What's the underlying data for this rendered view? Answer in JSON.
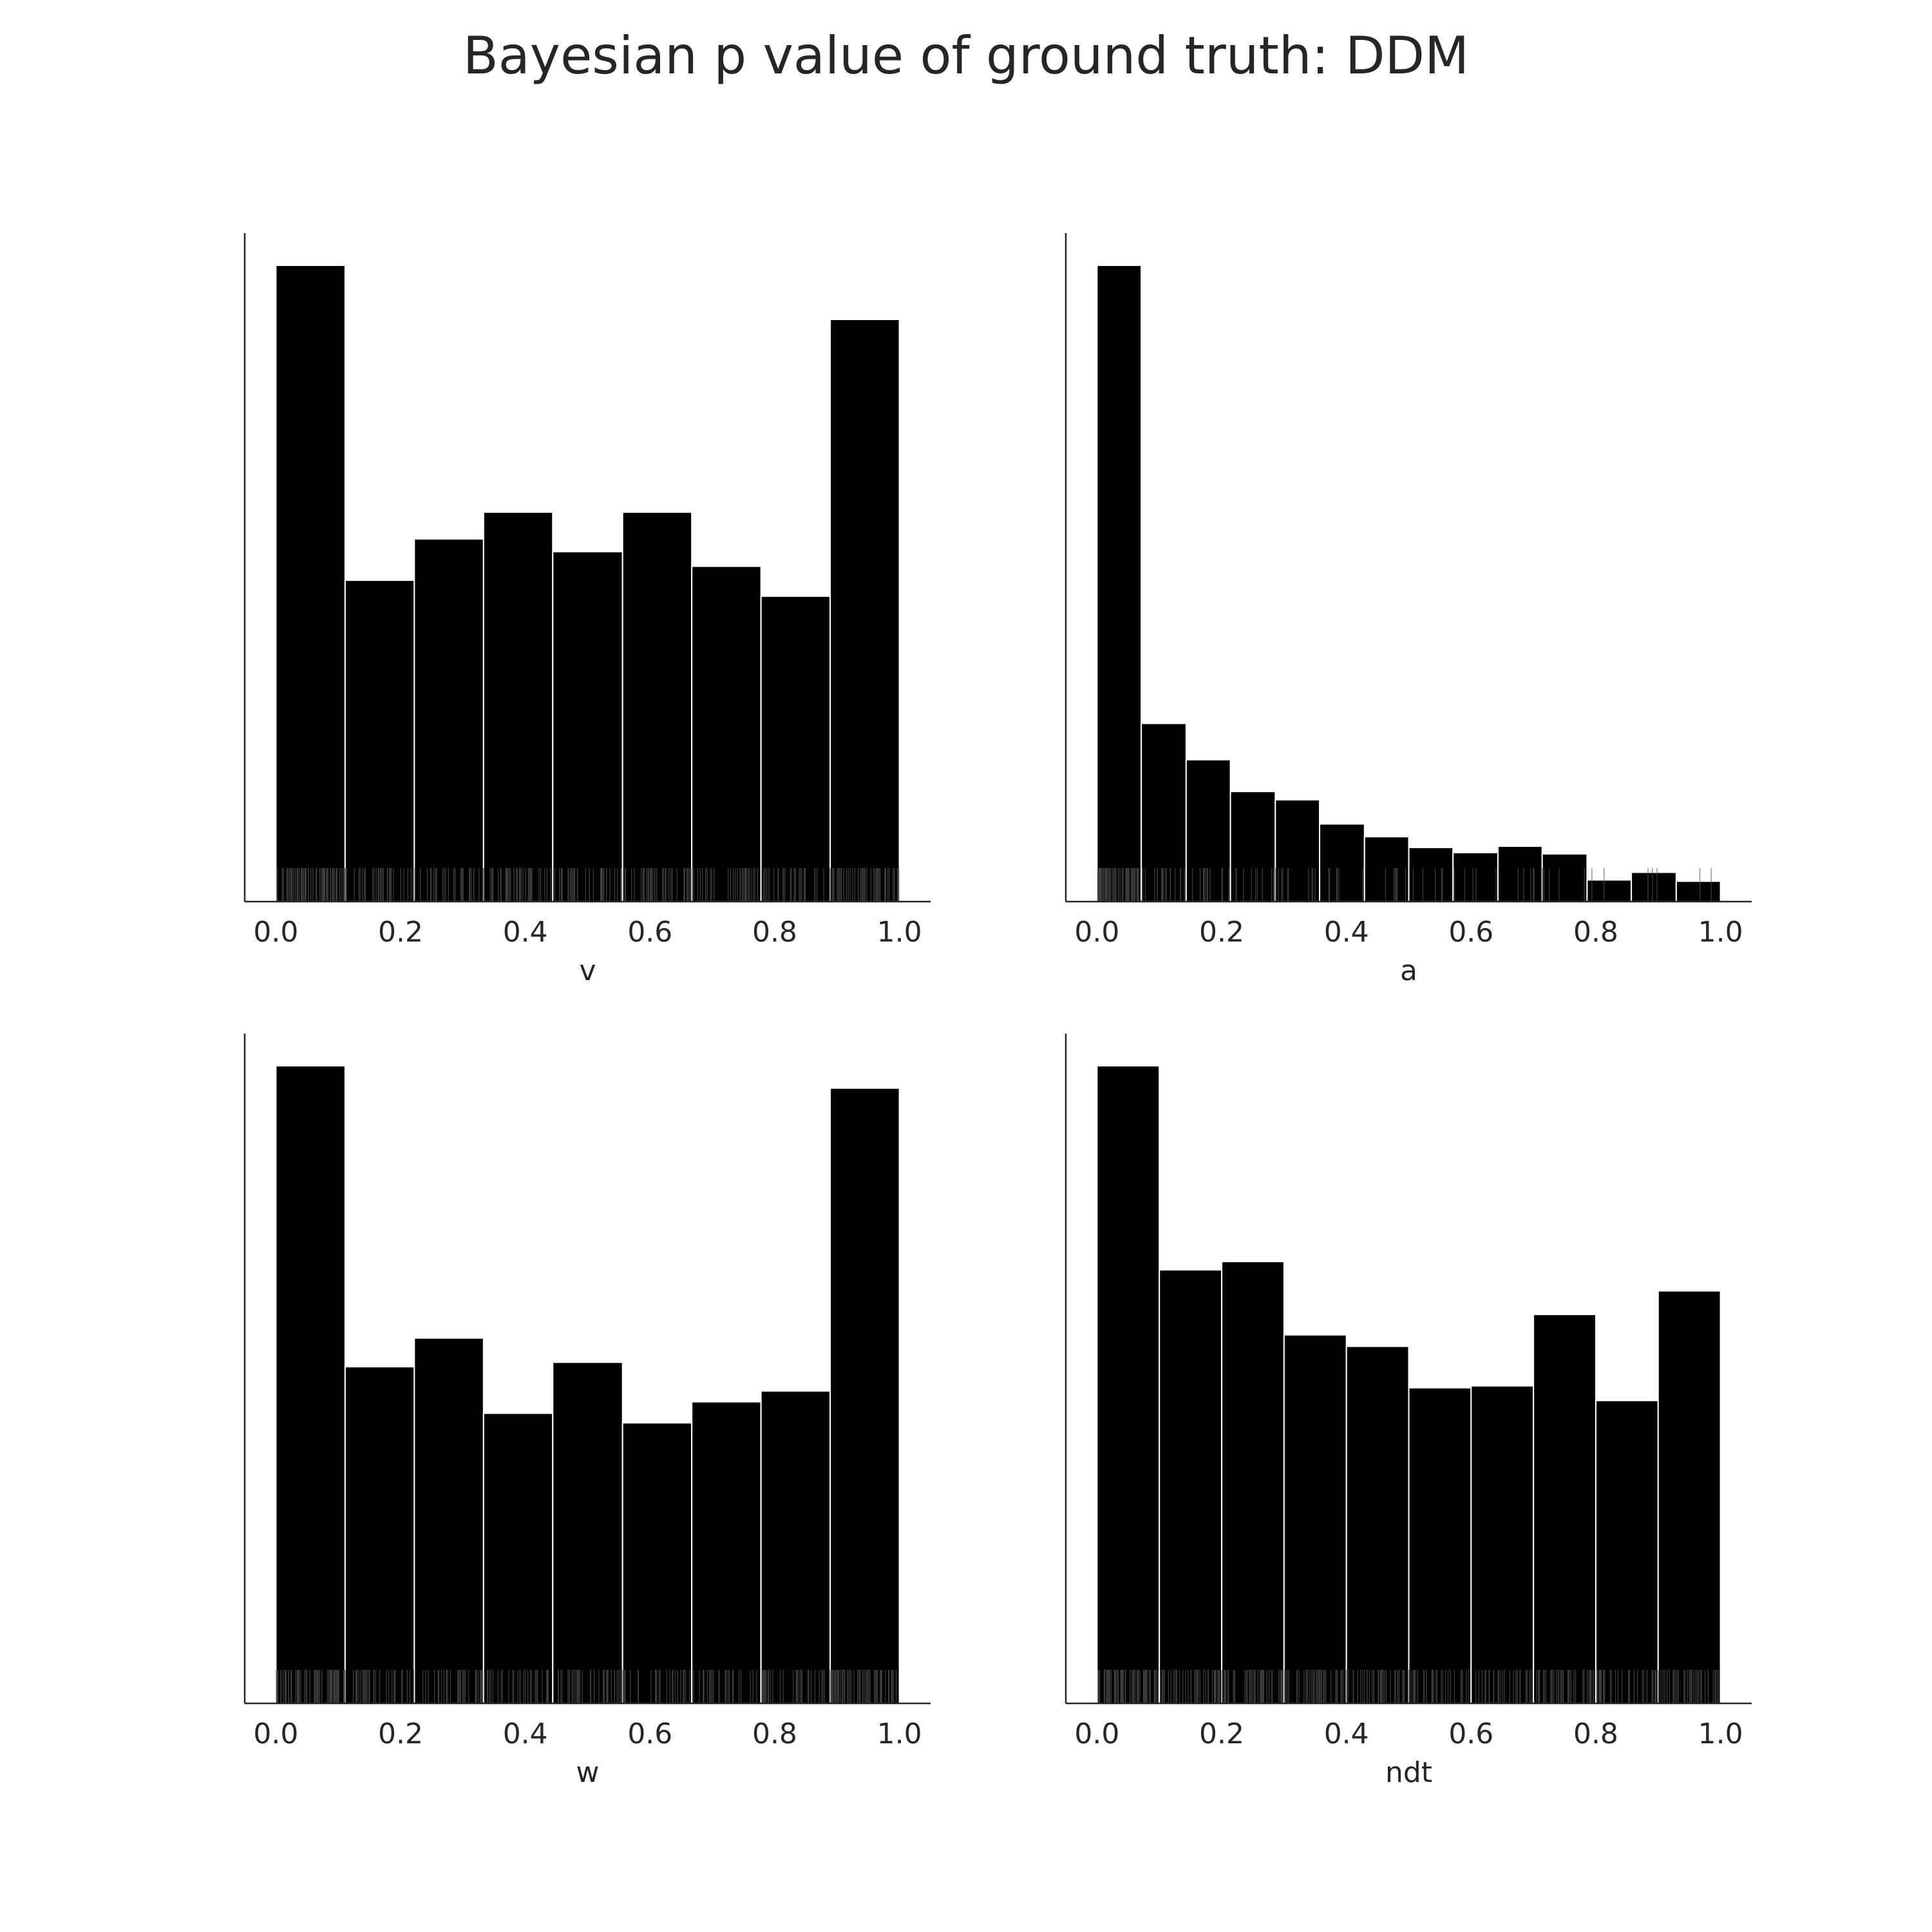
{
  "title": "Bayesian p value of ground truth: DDM",
  "colors": {
    "bar": "#000000",
    "axis": "#262626",
    "bar_edge": "#ffffff",
    "rug": "#555555"
  },
  "chart_data": [
    {
      "type": "bar",
      "xlabel": "v",
      "xlim": [
        -0.05,
        1.05
      ],
      "xticks": [
        "0.0",
        "0.2",
        "0.4",
        "0.6",
        "0.8",
        "1.0"
      ],
      "bin_edges": [
        0.0,
        0.111,
        0.222,
        0.333,
        0.444,
        0.556,
        0.667,
        0.778,
        0.889,
        1.0
      ],
      "values": [
        1.0,
        0.505,
        0.57,
        0.612,
        0.55,
        0.612,
        0.527,
        0.48,
        0.915
      ],
      "rug": true
    },
    {
      "type": "bar",
      "xlabel": "a",
      "xlim": [
        -0.05,
        1.05
      ],
      "xticks": [
        "0.0",
        "0.2",
        "0.4",
        "0.6",
        "0.8",
        "1.0"
      ],
      "bin_edges": [
        0.0,
        0.071,
        0.143,
        0.214,
        0.286,
        0.357,
        0.429,
        0.5,
        0.571,
        0.643,
        0.714,
        0.786,
        0.857,
        0.929,
        1.0
      ],
      "values": [
        1.0,
        0.28,
        0.223,
        0.173,
        0.16,
        0.122,
        0.102,
        0.085,
        0.077,
        0.087,
        0.075,
        0.034,
        0.046,
        0.032
      ],
      "rug": true
    },
    {
      "type": "bar",
      "xlabel": "w",
      "xlim": [
        -0.05,
        1.05
      ],
      "xticks": [
        "0.0",
        "0.2",
        "0.4",
        "0.6",
        "0.8",
        "1.0"
      ],
      "bin_edges": [
        0.0,
        0.111,
        0.222,
        0.333,
        0.444,
        0.556,
        0.667,
        0.778,
        0.889,
        1.0
      ],
      "values": [
        1.0,
        0.528,
        0.573,
        0.455,
        0.535,
        0.44,
        0.473,
        0.49,
        0.965
      ],
      "rug": true
    },
    {
      "type": "bar",
      "xlabel": "ndt",
      "xlim": [
        -0.05,
        1.05
      ],
      "xticks": [
        "0.0",
        "0.2",
        "0.4",
        "0.6",
        "0.8",
        "1.0"
      ],
      "bin_edges": [
        0.0,
        0.1,
        0.2,
        0.3,
        0.4,
        0.5,
        0.6,
        0.7,
        0.8,
        0.9,
        1.0
      ],
      "values": [
        1.0,
        0.68,
        0.693,
        0.578,
        0.56,
        0.495,
        0.498,
        0.61,
        0.475,
        0.647
      ],
      "rug": true
    }
  ]
}
